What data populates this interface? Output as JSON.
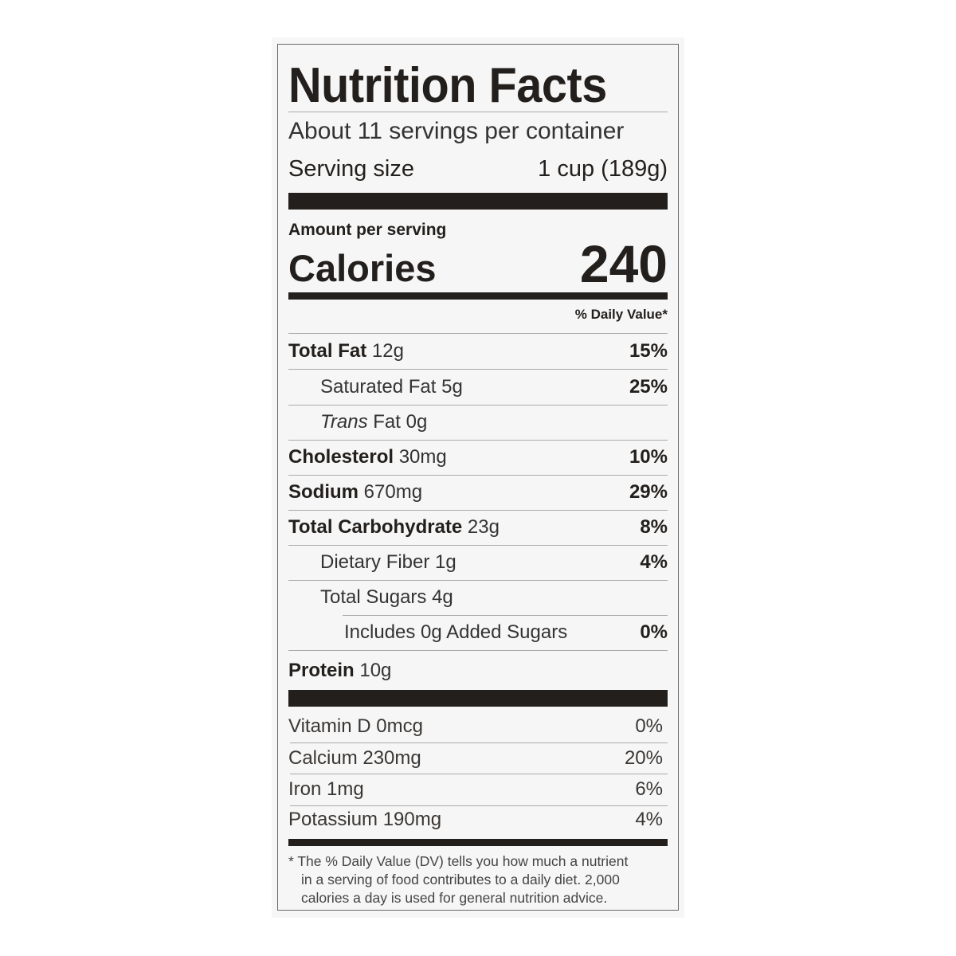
{
  "title": "Nutrition Facts",
  "servings_per_container": "About 11 servings per container",
  "serving_size": {
    "label": "Serving size",
    "value": "1 cup (189g)"
  },
  "amount_per_serving": "Amount per serving",
  "calories": {
    "label": "Calories",
    "value": "240"
  },
  "daily_value_header": "% Daily Value*",
  "nutrients": [
    {
      "name": "Total Fat",
      "amount": "12g",
      "dv": "15%"
    },
    {
      "name": "Saturated Fat",
      "amount": "5g",
      "dv": "25%"
    },
    {
      "name": "Trans",
      "name_suffix": "Fat",
      "amount": "0g",
      "dv": ""
    },
    {
      "name": "Cholesterol",
      "amount": "30mg",
      "dv": "10%"
    },
    {
      "name": "Sodium",
      "amount": "670mg",
      "dv": "29%"
    },
    {
      "name": "Total Carbohydrate",
      "amount": "23g",
      "dv": "8%"
    },
    {
      "name": "Dietary Fiber",
      "amount": "1g",
      "dv": "4%"
    },
    {
      "name": "Total Sugars",
      "amount": "4g",
      "dv": ""
    },
    {
      "name": "Includes 0g Added Sugars",
      "amount": "",
      "dv": "0%"
    },
    {
      "name": "Protein",
      "amount": "10g",
      "dv": ""
    }
  ],
  "vitamins": [
    {
      "label": "Vitamin D 0mcg",
      "dv": "0%"
    },
    {
      "label": "Calcium 230mg",
      "dv": "20%"
    },
    {
      "label": "Iron 1mg",
      "dv": "6%"
    },
    {
      "label": "Potassium 190mg",
      "dv": "4%"
    }
  ],
  "footnote": [
    "* The % Daily Value (DV) tells you how much a nutrient",
    "in a serving of food contributes to a daily diet. 2,000",
    "calories a day is used for general nutrition advice."
  ]
}
